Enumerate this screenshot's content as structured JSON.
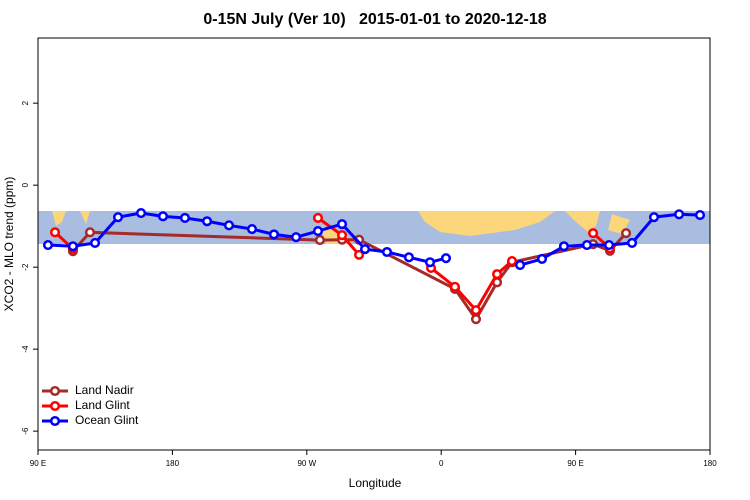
{
  "chart_data": {
    "type": "line",
    "title": "0-15N July (Ver 10)   2015-01-01 to 2020-12-18",
    "x_label": "Longitude",
    "y_label": "XCO2 - MLO trend (ppm)",
    "xlim": [
      90,
      540
    ],
    "ylim": [
      -6.46,
      3.59
    ],
    "xticks": [
      {
        "value": 90,
        "label": "90 E"
      },
      180,
      {
        "value": 270,
        "label": "90 W"
      },
      {
        "value": 360,
        "label": "0"
      },
      {
        "value": 450,
        "label": "90 E"
      },
      {
        "value": 540,
        "label": "180"
      }
    ],
    "yticks": [
      2,
      0,
      -2,
      -4,
      -6
    ],
    "legend": "bottom-left",
    "series": [
      {
        "name": "Land Nadir",
        "color": "#a52a2a",
        "x": [
          113.4,
          124.8,
          278.8,
          293.6,
          305,
          369.2,
          383.3,
          397.4,
          407.4,
          461.7,
          473,
          483.8
        ],
        "values": [
          -1.61,
          -1.15,
          -1.34,
          -1.33,
          -1.33,
          -2.53,
          -3.27,
          -2.37,
          -1.88,
          -1.44,
          -1.6,
          -1.17
        ]
      },
      {
        "name": "Land Glint",
        "color": "#ff0000",
        "x": [
          101.4,
          113.4,
          null,
          277.5,
          293.6,
          305,
          null,
          353.2,
          369.2,
          383.3,
          397.4,
          407.4,
          null,
          461.7,
          473
        ],
        "values": [
          -1.15,
          -1.55,
          null,
          -0.8,
          -1.22,
          -1.7,
          null,
          -2.02,
          -2.48,
          -3.05,
          -2.17,
          -1.85,
          null,
          -1.17,
          -1.54
        ]
      },
      {
        "name": "Ocean Glint",
        "color": "#0000ff",
        "x": [
          96.7,
          113.4,
          128.2,
          143.6,
          159,
          173.7,
          188.4,
          203.2,
          217.9,
          233.3,
          248,
          262.8,
          277.5,
          293.6,
          309,
          323.7,
          338.4,
          352.5,
          363.2,
          null,
          412.8,
          427.5,
          442.2,
          457.6,
          472.4,
          487.8,
          502.5,
          519.3,
          533.3
        ],
        "values": [
          -1.46,
          -1.49,
          -1.41,
          -0.78,
          -0.68,
          -0.76,
          -0.8,
          -0.88,
          -0.98,
          -1.07,
          -1.2,
          -1.27,
          -1.12,
          -0.95,
          -1.56,
          -1.63,
          -1.76,
          -1.88,
          -1.78,
          null,
          -1.95,
          -1.8,
          -1.49,
          -1.46,
          -1.46,
          -1.41,
          -0.78,
          -0.71,
          -0.73
        ]
      }
    ]
  }
}
